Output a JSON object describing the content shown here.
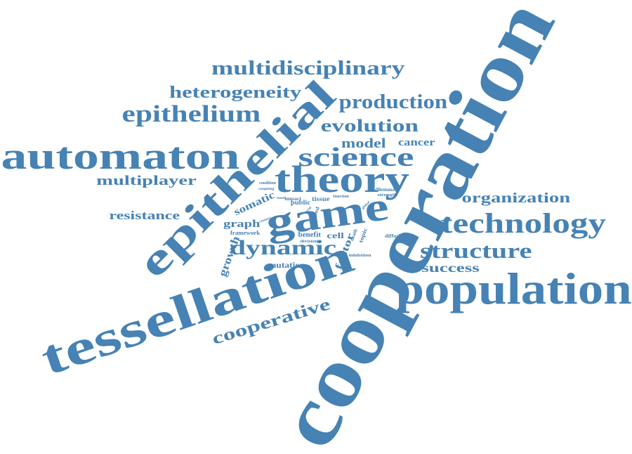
{
  "palette": {
    "word_color": "#4682b4",
    "background": "#ffffff"
  },
  "words": [
    {
      "id": "cooperation",
      "text": "cooperation"
    },
    {
      "id": "tessellation",
      "text": "tessellation"
    },
    {
      "id": "population",
      "text": "population"
    },
    {
      "id": "epithelial",
      "text": "epithelial"
    },
    {
      "id": "automaton",
      "text": "automaton"
    },
    {
      "id": "game",
      "text": "game"
    },
    {
      "id": "theory",
      "text": "theory"
    },
    {
      "id": "technology",
      "text": "technology"
    },
    {
      "id": "science",
      "text": "science"
    },
    {
      "id": "epithelium",
      "text": "epithelium"
    },
    {
      "id": "structure",
      "text": "structure"
    },
    {
      "id": "dynamic",
      "text": "dynamic"
    },
    {
      "id": "multidisciplinary",
      "text": "multidisciplinary"
    },
    {
      "id": "production",
      "text": "production"
    },
    {
      "id": "evolution",
      "text": "evolution"
    },
    {
      "id": "heterogeneity",
      "text": "heterogeneity"
    },
    {
      "id": "cooperative",
      "text": "cooperative"
    },
    {
      "id": "organization",
      "text": "organization"
    },
    {
      "id": "multiplayer",
      "text": "multiplayer"
    },
    {
      "id": "resistance",
      "text": "resistance"
    },
    {
      "id": "success",
      "text": "success"
    },
    {
      "id": "model",
      "text": "model"
    },
    {
      "id": "cancer",
      "text": "cancer"
    },
    {
      "id": "growth",
      "text": "growth"
    },
    {
      "id": "graph",
      "text": "graph"
    },
    {
      "id": "somatic",
      "text": "somatic"
    },
    {
      "id": "factor",
      "text": "factor"
    },
    {
      "id": "mutation",
      "text": "mutation"
    },
    {
      "id": "cell",
      "text": "cell"
    },
    {
      "id": "benefit",
      "text": "benefit"
    },
    {
      "id": "framework",
      "text": "framework"
    },
    {
      "id": "public",
      "text": "public"
    },
    {
      "id": "tissue",
      "text": "tissue"
    },
    {
      "id": "impact",
      "text": "impact"
    },
    {
      "id": "dilemma",
      "text": "dilemma"
    },
    {
      "id": "strength",
      "text": "strength"
    },
    {
      "id": "diffusible",
      "text": "diffusible"
    },
    {
      "id": "good",
      "text": "good"
    },
    {
      "id": "topic",
      "text": "topic"
    },
    {
      "id": "death",
      "text": "death"
    },
    {
      "id": "condition",
      "text": "condition"
    },
    {
      "id": "coupling",
      "text": "coupling"
    },
    {
      "id": "division",
      "text": "division"
    },
    {
      "id": "inhibition",
      "text": "inhibition"
    },
    {
      "id": "function",
      "text": "function"
    },
    {
      "id": "global",
      "text": "global"
    },
    {
      "id": "need",
      "text": "need"
    },
    {
      "id": "social",
      "text": "social"
    },
    {
      "id": "contact",
      "text": "contact"
    }
  ]
}
